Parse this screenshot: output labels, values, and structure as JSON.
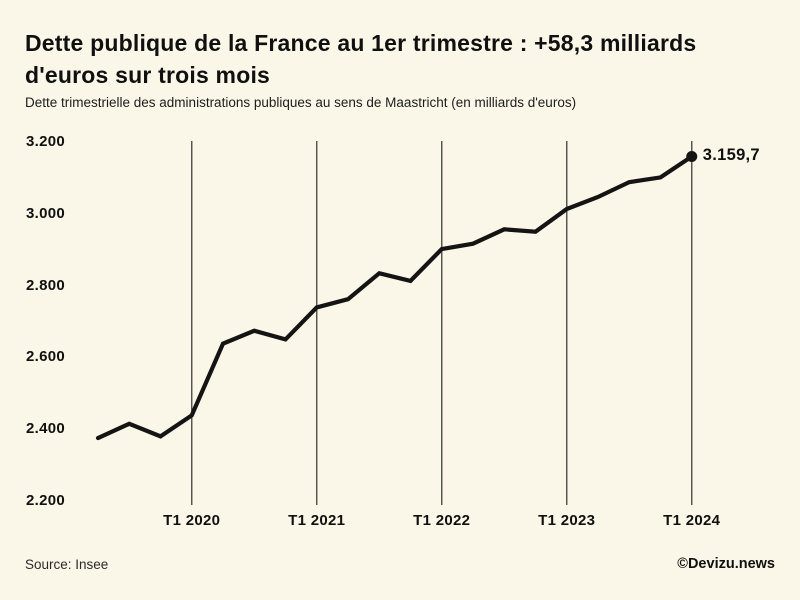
{
  "header": {
    "title": "Dette publique de la France au 1er trimestre : +58,3 milliards d'euros sur trois mois",
    "subtitle": "Dette trimestrielle des administrations publiques au sens de Maastricht (en milliards d'euros)"
  },
  "footer": {
    "source": "Source: Insee",
    "watermark": "©Devizu.news"
  },
  "colors": {
    "background": "#fbf7e8",
    "line": "#141414",
    "gridline": "#4d4d45",
    "text": "#101010"
  },
  "chart_data": {
    "type": "line",
    "title": "Dette publique de la France au 1er trimestre : +58,3 milliards d'euros sur trois mois",
    "subtitle": "Dette trimestrielle des administrations publiques au sens de Maastricht (en milliards d'euros)",
    "xlabel": "",
    "ylabel": "",
    "ylim": [
      2200,
      3200
    ],
    "grid": "vertical-only",
    "legend": "none",
    "x": [
      "T2 2019",
      "T3 2019",
      "T4 2019",
      "T1 2020",
      "T2 2020",
      "T3 2020",
      "T4 2020",
      "T1 2021",
      "T2 2021",
      "T3 2021",
      "T4 2021",
      "T1 2022",
      "T2 2022",
      "T3 2022",
      "T4 2022",
      "T1 2023",
      "T2 2023",
      "T3 2023",
      "T4 2023",
      "T1 2024"
    ],
    "series": [
      {
        "name": "Dette publique (milliards d'euros)",
        "values": [
          2375.4,
          2415.1,
          2380.1,
          2438.5,
          2638.3,
          2674.3,
          2650.1,
          2739.2,
          2762.1,
          2834.3,
          2813.1,
          2901.8,
          2916.8,
          2956.8,
          2950.1,
          3013.4,
          3046.9,
          3088.2,
          3101.4,
          3159.7
        ]
      }
    ],
    "x_tick_labels": [
      "T1 2020",
      "T1 2021",
      "T1 2022",
      "T1 2023",
      "T1 2024"
    ],
    "x_tick_indices": [
      3,
      7,
      11,
      15,
      19
    ],
    "y_ticks": [
      {
        "label": "2.200",
        "value": 2200
      },
      {
        "label": "2.400",
        "value": 2400
      },
      {
        "label": "2.600",
        "value": 2600
      },
      {
        "label": "2.800",
        "value": 2800
      },
      {
        "label": "3.000",
        "value": 3000
      },
      {
        "label": "3.200",
        "value": 3200
      }
    ],
    "end_point": {
      "label": "3.159,7",
      "value": 3159.7,
      "x": "T1 2024"
    }
  }
}
